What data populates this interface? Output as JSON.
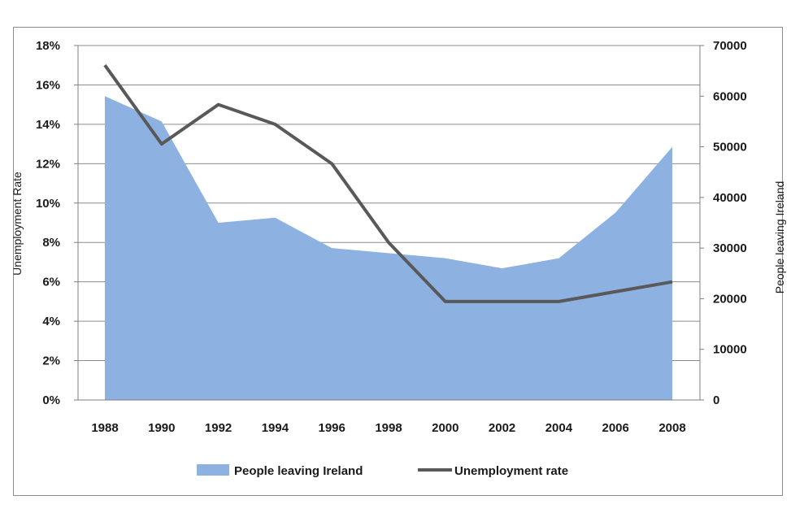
{
  "chart_data": {
    "type": "area",
    "x": [
      "1988",
      "1990",
      "1992",
      "1994",
      "1996",
      "1998",
      "2000",
      "2002",
      "2004",
      "2006",
      "2008"
    ],
    "series": [
      {
        "name": "People leaving Ireland",
        "kind": "area",
        "axis": "right",
        "color": "#8db2e2",
        "values": [
          60000,
          55000,
          35000,
          36000,
          30000,
          29000,
          28000,
          26000,
          28000,
          37000,
          50000
        ]
      },
      {
        "name": "Unemployment rate",
        "kind": "line",
        "axis": "left",
        "color": "#595959",
        "values": [
          17,
          13,
          15,
          14,
          12,
          8,
          5,
          5,
          5,
          5.5,
          6
        ]
      }
    ],
    "ylabel_left": "Unemployment Rate",
    "ylabel_right": "People leaving Ireland",
    "ylim_left": [
      0,
      18
    ],
    "ylim_right": [
      0,
      70000
    ],
    "yticks_left": [
      "0%",
      "2%",
      "4%",
      "6%",
      "8%",
      "10%",
      "12%",
      "14%",
      "16%",
      "18%"
    ],
    "yticks_right": [
      "0",
      "10000",
      "20000",
      "30000",
      "40000",
      "50000",
      "60000",
      "70000"
    ],
    "grid": true,
    "legend_position": "bottom"
  }
}
